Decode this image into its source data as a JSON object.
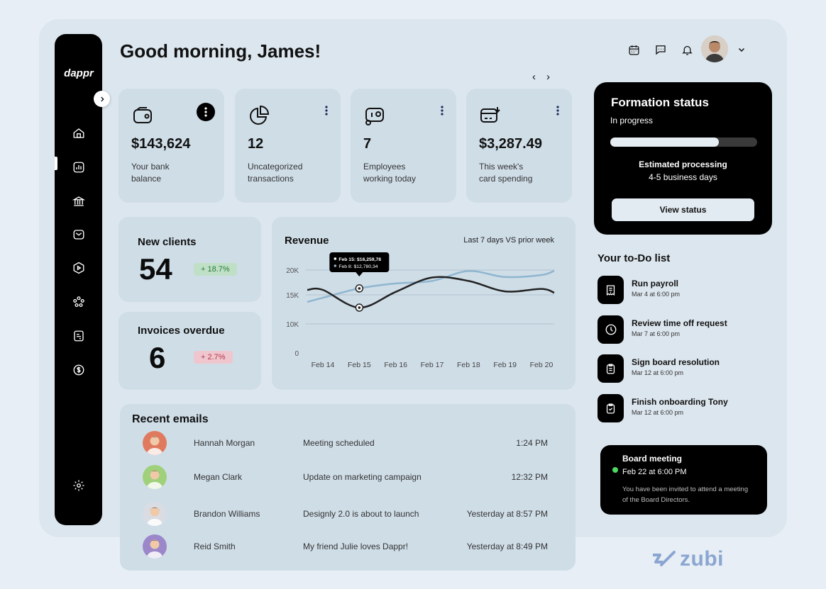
{
  "app": {
    "logo": "dappr"
  },
  "header": {
    "greeting": "Good morning, James!",
    "icons": [
      "calendar-icon",
      "chat-icon",
      "bell-icon",
      "chevron-down-icon"
    ],
    "pager_prev": "‹",
    "pager_next": "›"
  },
  "sidebar": {
    "items": [
      {
        "name": "home",
        "icon": "home-icon"
      },
      {
        "name": "reports",
        "icon": "chart-icon"
      },
      {
        "name": "bank",
        "icon": "bank-icon"
      },
      {
        "name": "mail",
        "icon": "mail-icon"
      },
      {
        "name": "media",
        "icon": "play-icon"
      },
      {
        "name": "team",
        "icon": "team-icon"
      },
      {
        "name": "documents",
        "icon": "document-icon"
      },
      {
        "name": "payments",
        "icon": "dollar-icon"
      },
      {
        "name": "settings",
        "icon": "gear-icon"
      }
    ]
  },
  "stats": [
    {
      "value": "$143,624",
      "label1": "Your bank",
      "label2": "balance",
      "icon": "wallet-icon"
    },
    {
      "value": "12",
      "label1": "Uncategorized",
      "label2": "transactions",
      "icon": "pie-icon"
    },
    {
      "value": "7",
      "label1": "Employees",
      "label2": "working today",
      "icon": "employees-icon"
    },
    {
      "value": "$3,287.49",
      "label1": "This week's",
      "label2": "card spending",
      "icon": "card-icon"
    }
  ],
  "kpis": {
    "new_clients": {
      "title": "New clients",
      "value": "54",
      "change": "+ 18.7%"
    },
    "invoices": {
      "title": "Invoices overdue",
      "value": "6",
      "change": "+ 2.7%"
    }
  },
  "revenue": {
    "title": "Revenue",
    "period": "Last 7 days VS prior week",
    "tooltip_1": "Feb 15: $16,259,78",
    "tooltip_2": "Feb 8: $12,780,34"
  },
  "chart_data": {
    "type": "line",
    "title": "Revenue",
    "categories": [
      "Feb 14",
      "Feb 15",
      "Feb 16",
      "Feb 17",
      "Feb 18",
      "Feb 19",
      "Feb 20"
    ],
    "y_ticks": [
      "20K",
      "15K",
      "10K",
      "0"
    ],
    "ylim": [
      0,
      20000
    ],
    "series": [
      {
        "color": "#8fb6cf",
        "values": [
          14500,
          16300,
          17300,
          17800,
          19800,
          18600,
          19000
        ]
      },
      {
        "color": "#222222",
        "values": [
          16000,
          12800,
          15600,
          18500,
          17800,
          15700,
          16200
        ]
      }
    ]
  },
  "emails": {
    "title": "Recent emails",
    "rows": [
      {
        "name": "Hannah Morgan",
        "subject": "Meeting scheduled",
        "time": "1:24 PM",
        "color": "#e07a5f"
      },
      {
        "name": "Megan Clark",
        "subject": "Update on marketing campaign",
        "time": "12:32 PM",
        "color": "#9fd07a"
      },
      {
        "name": "Brandon Williams",
        "subject": "Designly 2.0 is about to launch",
        "time": "Yesterday at 8:57 PM",
        "color": "#d9dde3"
      },
      {
        "name": "Reid Smith",
        "subject": "My friend Julie loves Dappr!",
        "time": "Yesterday at 8:49 PM",
        "color": "#9b87c9"
      }
    ]
  },
  "formation": {
    "title": "Formation status",
    "status": "In progress",
    "progress": 0.74,
    "est_label": "Estimated processing",
    "est_value": "4-5 business days",
    "button": "View status"
  },
  "todo": {
    "title": "Your to-Do list",
    "items": [
      {
        "name": "Run payroll",
        "date": "Mar 4 at 6:00 pm",
        "icon": "receipt-icon"
      },
      {
        "name": "Review time off request",
        "date": "Mar 7 at 6:00 pm",
        "icon": "clock-icon"
      },
      {
        "name": "Sign board resolution",
        "date": "Mar 12 at 6:00 pm",
        "icon": "clipboard-icon"
      },
      {
        "name": "Finish onboarding Tony",
        "date": "Mar 12 at 6:00 pm",
        "icon": "clipboard-check-icon"
      }
    ]
  },
  "board": {
    "title": "Board meeting",
    "date": "Feb 22 at 6:00 PM",
    "desc": "You have been invited to attend a meeting of the Board Directors."
  },
  "watermark": {
    "text": "zubi"
  }
}
